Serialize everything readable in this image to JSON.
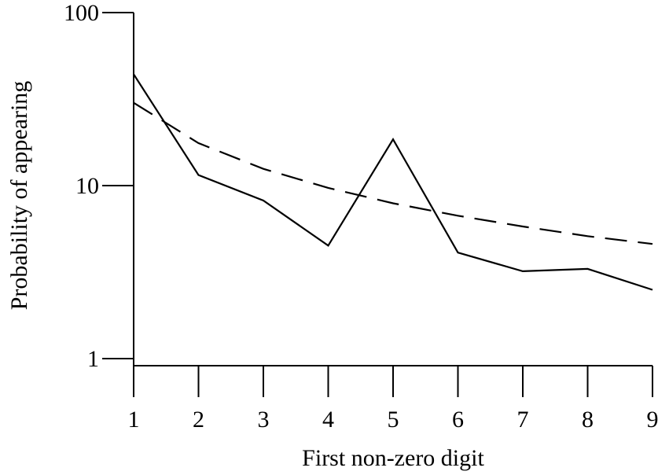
{
  "chart_data": {
    "type": "line",
    "title": "",
    "xlabel": "First non-zero digit",
    "ylabel": "Probability of appearing",
    "x": [
      1,
      2,
      3,
      4,
      5,
      6,
      7,
      8,
      9
    ],
    "xlim": [
      1,
      9
    ],
    "ylim": [
      0.9,
      100
    ],
    "yscale": "log",
    "yticks": [
      1,
      10,
      100
    ],
    "ytick_labels": [
      "1",
      "10",
      "100"
    ],
    "xtick_labels": [
      "1",
      "2",
      "3",
      "4",
      "5",
      "6",
      "7",
      "8",
      "9"
    ],
    "grid": false,
    "series": [
      {
        "style": "solid",
        "values": [
          44,
          11.5,
          8.2,
          4.5,
          18.5,
          4.1,
          3.2,
          3.3,
          2.5
        ]
      },
      {
        "style": "dashed",
        "values": [
          30.1,
          17.6,
          12.5,
          9.7,
          7.9,
          6.7,
          5.8,
          5.1,
          4.6
        ]
      }
    ]
  }
}
